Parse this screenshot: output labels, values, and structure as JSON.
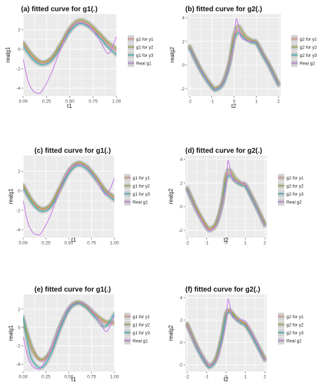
{
  "chart_data": [
    {
      "type": "line",
      "title": "(a) fitted curve for g1(.)",
      "xlabel": "t1",
      "ylabel": "realg1",
      "xlim": [
        0,
        1
      ],
      "ylim": [
        -4.8,
        3.6
      ],
      "xticks": [
        0.0,
        0.25,
        0.5,
        0.75,
        1.0
      ],
      "xtick_labels": [
        "0.00",
        "0.25",
        "0.50",
        "0.75",
        "1.00"
      ],
      "yticks": [
        -4,
        -2,
        0,
        2
      ],
      "ytick_labels": [
        "-4",
        "-2",
        "0",
        "2"
      ],
      "legend_position": "right",
      "series": [
        {
          "name": "g1 for y1",
          "color": "#f08b7e",
          "x": [
            0,
            0.1,
            0.2,
            0.3,
            0.4,
            0.5,
            0.6,
            0.7,
            0.8,
            0.9,
            1.0
          ],
          "y": [
            0.6,
            -0.7,
            -1.4,
            -1.0,
            0.4,
            2.0,
            2.8,
            2.5,
            1.6,
            0.6,
            -0.2
          ]
        },
        {
          "name": "g1 for y2",
          "color": "#9aa82c",
          "x": [
            0,
            0.1,
            0.2,
            0.3,
            0.4,
            0.5,
            0.6,
            0.7,
            0.8,
            0.9,
            1.0
          ],
          "y": [
            0.7,
            -0.6,
            -1.3,
            -0.9,
            0.5,
            2.2,
            3.0,
            2.7,
            1.8,
            0.8,
            0.1
          ]
        },
        {
          "name": "g1 for y3",
          "color": "#27b3b5",
          "x": [
            0,
            0.1,
            0.2,
            0.3,
            0.4,
            0.5,
            0.6,
            0.7,
            0.8,
            0.9,
            1.0
          ],
          "y": [
            0.3,
            -1.0,
            -1.6,
            -1.2,
            0.2,
            1.8,
            2.6,
            2.3,
            1.4,
            0.3,
            -0.6
          ]
        },
        {
          "name": "Real g1",
          "color": "#c77ce8",
          "x": [
            0,
            0.05,
            0.1,
            0.15,
            0.2,
            0.3,
            0.4,
            0.5,
            0.6,
            0.7,
            0.8,
            0.9,
            0.95,
            1.0
          ],
          "y": [
            -1.0,
            -3.2,
            -4.2,
            -4.5,
            -4.3,
            -2.5,
            0.0,
            2.1,
            2.7,
            2.4,
            1.2,
            -0.4,
            0.1,
            1.3
          ]
        }
      ]
    },
    {
      "type": "line",
      "title": "(b) fitted curve for g2(.)",
      "xlabel": "t2",
      "ylabel": "realg2",
      "xlim": [
        -2.1,
        2.1
      ],
      "ylim": [
        -2.6,
        4.3
      ],
      "xticks": [
        -2,
        -1,
        0,
        1,
        2
      ],
      "xtick_labels": [
        "-2",
        "-1",
        "0",
        "1",
        "2"
      ],
      "yticks": [
        -2,
        0,
        2,
        4
      ],
      "ytick_labels": [
        "-2",
        "0",
        "2",
        "4"
      ],
      "legend_position": "right",
      "series": [
        {
          "name": "g2 for y1",
          "color": "#f08b7e",
          "x": [
            -2,
            -1.5,
            -1,
            -0.8,
            -0.5,
            -0.2,
            0,
            0.2,
            0.5,
            0.8,
            1.0,
            1.3,
            1.6,
            2.0
          ],
          "y": [
            1.5,
            -0.4,
            -1.8,
            -2.0,
            -1.5,
            0.2,
            2.3,
            2.9,
            2.3,
            2.0,
            1.9,
            0.9,
            -0.1,
            -1.6
          ]
        },
        {
          "name": "g2 for y2",
          "color": "#9aa82c",
          "x": [
            -2,
            -1.5,
            -1,
            -0.8,
            -0.5,
            -0.2,
            0,
            0.2,
            0.5,
            0.8,
            1.0,
            1.3,
            1.6,
            2.0
          ],
          "y": [
            1.6,
            -0.3,
            -1.7,
            -1.9,
            -1.4,
            0.4,
            2.6,
            3.3,
            2.5,
            2.1,
            2.0,
            1.0,
            0.0,
            -1.5
          ]
        },
        {
          "name": "g2 for y3",
          "color": "#27b3b5",
          "x": [
            -2,
            -1.5,
            -1,
            -0.8,
            -0.5,
            -0.2,
            0,
            0.2,
            0.5,
            0.8,
            1.0,
            1.3,
            1.6,
            2.0
          ],
          "y": [
            1.4,
            -0.5,
            -1.9,
            -2.1,
            -1.6,
            0.1,
            2.1,
            2.7,
            2.2,
            1.9,
            1.8,
            0.8,
            -0.2,
            -1.7
          ]
        },
        {
          "name": "Real g2",
          "color": "#c77ce8",
          "x": [
            -2,
            -1.5,
            -1,
            -0.8,
            -0.5,
            -0.2,
            0,
            0.05,
            0.1,
            0.2,
            0.3,
            0.5,
            0.8,
            1.0,
            1.3,
            1.6,
            2.0
          ],
          "y": [
            1.5,
            -0.4,
            -1.8,
            -2.0,
            -1.5,
            0.2,
            2.0,
            3.2,
            3.9,
            3.3,
            2.4,
            2.1,
            2.0,
            1.9,
            0.9,
            -0.1,
            -1.6
          ]
        }
      ]
    },
    {
      "type": "line",
      "title": "(c) fitted curve for g1(.)",
      "xlabel": "t1",
      "ylabel": "realg1",
      "xlim": [
        0,
        1
      ],
      "ylim": [
        -4.8,
        3.6
      ],
      "xticks": [
        0.0,
        0.25,
        0.5,
        0.75,
        1.0
      ],
      "xtick_labels": [
        "0.00",
        "0.25",
        "0.50",
        "0.75",
        "1.00"
      ],
      "yticks": [
        -4,
        -2,
        0,
        2
      ],
      "ytick_labels": [
        "-4",
        "-2",
        "0",
        "2"
      ],
      "legend_position": "right",
      "series": [
        {
          "name": "g1 for y1",
          "color": "#f08b7e",
          "x": [
            0,
            0.1,
            0.2,
            0.3,
            0.4,
            0.5,
            0.6,
            0.7,
            0.8,
            0.9,
            1.0
          ],
          "y": [
            0.5,
            -1.1,
            -1.9,
            -1.5,
            0.2,
            2.0,
            2.8,
            2.4,
            1.3,
            0.0,
            -0.8
          ]
        },
        {
          "name": "g1 for y2",
          "color": "#9aa82c",
          "x": [
            0,
            0.1,
            0.2,
            0.3,
            0.4,
            0.5,
            0.6,
            0.7,
            0.8,
            0.9,
            1.0
          ],
          "y": [
            0.6,
            -1.0,
            -1.8,
            -1.4,
            0.3,
            2.1,
            2.9,
            2.5,
            1.4,
            0.1,
            -0.6
          ]
        },
        {
          "name": "g1 for y3",
          "color": "#27b3b5",
          "x": [
            0,
            0.1,
            0.2,
            0.3,
            0.4,
            0.5,
            0.6,
            0.7,
            0.8,
            0.9,
            1.0
          ],
          "y": [
            0.3,
            -1.3,
            -2.1,
            -1.7,
            0.0,
            1.8,
            2.6,
            2.2,
            1.1,
            -0.2,
            -1.0
          ]
        },
        {
          "name": "Real g1",
          "color": "#c77ce8",
          "x": [
            0,
            0.05,
            0.1,
            0.15,
            0.2,
            0.3,
            0.4,
            0.5,
            0.6,
            0.7,
            0.8,
            0.9,
            0.95,
            1.0
          ],
          "y": [
            -1.0,
            -3.2,
            -4.2,
            -4.5,
            -4.3,
            -2.5,
            0.0,
            2.1,
            2.7,
            2.4,
            1.2,
            -0.4,
            0.1,
            1.3
          ]
        }
      ]
    },
    {
      "type": "line",
      "title": "(d) fitted curve for g2(.)",
      "xlabel": "t2",
      "ylabel": "realg2",
      "xlim": [
        -2.1,
        2.1
      ],
      "ylim": [
        -2.6,
        4.3
      ],
      "xticks": [
        -2,
        -1,
        0,
        1,
        2
      ],
      "xtick_labels": [
        "-2",
        "-1",
        "0",
        "1",
        "2"
      ],
      "yticks": [
        -2,
        0,
        2,
        4
      ],
      "ytick_labels": [
        "-2",
        "0",
        "2",
        "4"
      ],
      "legend_position": "right",
      "series": [
        {
          "name": "g2 for y1",
          "color": "#f08b7e",
          "x": [
            -2,
            -1.5,
            -1,
            -0.8,
            -0.5,
            -0.2,
            0,
            0.2,
            0.5,
            0.8,
            1.0,
            1.3,
            1.6,
            2.0
          ],
          "y": [
            1.5,
            -0.3,
            -1.7,
            -1.9,
            -1.4,
            0.3,
            2.4,
            2.8,
            2.2,
            1.9,
            1.8,
            0.9,
            -0.1,
            -1.5
          ]
        },
        {
          "name": "g2 for y2",
          "color": "#9aa82c",
          "x": [
            -2,
            -1.5,
            -1,
            -0.8,
            -0.5,
            -0.2,
            0,
            0.2,
            0.5,
            0.8,
            1.0,
            1.3,
            1.6,
            2.0
          ],
          "y": [
            1.6,
            -0.2,
            -1.6,
            -1.8,
            -1.3,
            0.5,
            2.7,
            3.1,
            2.4,
            2.0,
            1.9,
            1.0,
            0.0,
            -1.4
          ]
        },
        {
          "name": "g2 for y3",
          "color": "#27b3b5",
          "x": [
            -2,
            -1.5,
            -1,
            -0.8,
            -0.5,
            -0.2,
            0,
            0.2,
            0.5,
            0.8,
            1.0,
            1.3,
            1.6,
            2.0
          ],
          "y": [
            1.4,
            -0.4,
            -1.8,
            -2.0,
            -1.5,
            0.2,
            2.2,
            2.6,
            2.1,
            1.8,
            1.7,
            0.8,
            -0.2,
            -1.6
          ]
        },
        {
          "name": "Real g2",
          "color": "#c77ce8",
          "x": [
            -2,
            -1.5,
            -1,
            -0.8,
            -0.5,
            -0.2,
            0,
            0.05,
            0.1,
            0.2,
            0.3,
            0.5,
            0.8,
            1.0,
            1.3,
            1.6,
            2.0
          ],
          "y": [
            1.5,
            -0.4,
            -1.8,
            -2.0,
            -1.5,
            0.2,
            2.0,
            3.2,
            3.9,
            3.3,
            2.4,
            2.1,
            2.0,
            1.9,
            0.9,
            -0.1,
            -1.6
          ]
        }
      ]
    },
    {
      "type": "line",
      "title": "(e) fitted curve for g1(.)",
      "xlabel": "t1",
      "ylabel": "realg1",
      "xlim": [
        0,
        1
      ],
      "ylim": [
        -4.8,
        3.6
      ],
      "xticks": [
        0.0,
        0.25,
        0.5,
        0.75,
        1.0
      ],
      "xtick_labels": [
        "0.00",
        "0.25",
        "0.50",
        "0.75",
        "1.00"
      ],
      "yticks": [
        -4,
        -2,
        0,
        2
      ],
      "ytick_labels": [
        "-4",
        "-2",
        "0",
        "2"
      ],
      "legend_position": "right",
      "series": [
        {
          "name": "g1 for y1",
          "color": "#f08b7e",
          "x": [
            0,
            0.1,
            0.2,
            0.3,
            0.4,
            0.5,
            0.6,
            0.7,
            0.8,
            0.9,
            1.0
          ],
          "y": [
            0.8,
            -2.4,
            -3.6,
            -2.6,
            0.0,
            2.0,
            2.7,
            2.2,
            1.2,
            0.5,
            0.4
          ]
        },
        {
          "name": "g1 for y2",
          "color": "#9aa82c",
          "x": [
            0,
            0.1,
            0.2,
            0.3,
            0.4,
            0.5,
            0.6,
            0.7,
            0.8,
            0.9,
            1.0
          ],
          "y": [
            0.9,
            -2.3,
            -3.5,
            -2.5,
            0.1,
            2.1,
            2.8,
            2.3,
            1.4,
            0.7,
            0.6
          ]
        },
        {
          "name": "g1 for y3",
          "color": "#27b3b5",
          "x": [
            0,
            0.05,
            0.1,
            0.2,
            0.3,
            0.4,
            0.5,
            0.6,
            0.7,
            0.8,
            0.9,
            1.0
          ],
          "y": [
            1.2,
            -1.8,
            -3.6,
            -4.4,
            -3.0,
            -0.3,
            1.9,
            2.6,
            2.1,
            1.0,
            0.1,
            1.5
          ]
        },
        {
          "name": "Real g1",
          "color": "#c77ce8",
          "x": [
            0,
            0.05,
            0.1,
            0.15,
            0.2,
            0.3,
            0.4,
            0.5,
            0.6,
            0.7,
            0.8,
            0.9,
            0.95,
            1.0
          ],
          "y": [
            -1.0,
            -3.2,
            -4.2,
            -4.5,
            -4.3,
            -2.5,
            0.0,
            2.1,
            2.7,
            2.4,
            1.2,
            -0.4,
            0.1,
            1.3
          ]
        }
      ]
    },
    {
      "type": "line",
      "title": "(f) fitted curve for g2(.)",
      "xlabel": "t2",
      "ylabel": "realg2",
      "xlim": [
        -2.1,
        2.1
      ],
      "ylim": [
        -2.6,
        4.3
      ],
      "xticks": [
        -2,
        -1,
        0,
        1,
        2
      ],
      "xtick_labels": [
        "-2",
        "-1",
        "0",
        "1",
        "2"
      ],
      "yticks": [
        -2,
        0,
        2,
        4
      ],
      "ytick_labels": [
        "-2",
        "0",
        "2",
        "4"
      ],
      "legend_position": "right",
      "series": [
        {
          "name": "g2 for y1",
          "color": "#f08b7e",
          "x": [
            -2,
            -1.5,
            -1,
            -0.8,
            -0.5,
            -0.2,
            0,
            0.2,
            0.5,
            0.8,
            1.0,
            1.3,
            1.6,
            2.0
          ],
          "y": [
            1.6,
            -0.4,
            -1.9,
            -2.1,
            -1.4,
            0.6,
            2.5,
            2.8,
            2.2,
            1.8,
            1.6,
            0.8,
            -0.2,
            -1.5
          ]
        },
        {
          "name": "g2 for y2",
          "color": "#9aa82c",
          "x": [
            -2,
            -1.5,
            -1,
            -0.8,
            -0.5,
            -0.2,
            0,
            0.2,
            0.5,
            0.8,
            1.0,
            1.3,
            1.6,
            2.0
          ],
          "y": [
            1.7,
            -0.3,
            -1.8,
            -2.0,
            -1.3,
            0.7,
            2.6,
            2.9,
            2.3,
            1.9,
            1.7,
            0.9,
            -0.1,
            -1.4
          ]
        },
        {
          "name": "g2 for y3",
          "color": "#27b3b5",
          "x": [
            -2,
            -1.5,
            -1,
            -0.8,
            -0.5,
            -0.2,
            0,
            0.2,
            0.5,
            0.8,
            1.0,
            1.3,
            1.6,
            2.0
          ],
          "y": [
            1.5,
            -0.5,
            -2.0,
            -2.2,
            -1.5,
            0.5,
            2.4,
            2.7,
            2.1,
            1.7,
            1.5,
            0.7,
            -0.3,
            -1.6
          ]
        },
        {
          "name": "Real g2",
          "color": "#c77ce8",
          "x": [
            -2,
            -1.5,
            -1,
            -0.8,
            -0.5,
            -0.2,
            0,
            0.05,
            0.1,
            0.2,
            0.3,
            0.5,
            0.8,
            1.0,
            1.3,
            1.6,
            2.0
          ],
          "y": [
            1.5,
            -0.4,
            -1.8,
            -2.0,
            -1.5,
            0.2,
            2.0,
            3.2,
            3.9,
            3.3,
            2.4,
            2.1,
            2.0,
            1.9,
            0.9,
            -0.1,
            -1.6
          ]
        }
      ]
    }
  ],
  "style": {
    "panel_background": "#ebebeb",
    "grid_color": "#ffffff",
    "band_color": "#a0a0a0",
    "legend_key_background": "#d6d6d6"
  }
}
